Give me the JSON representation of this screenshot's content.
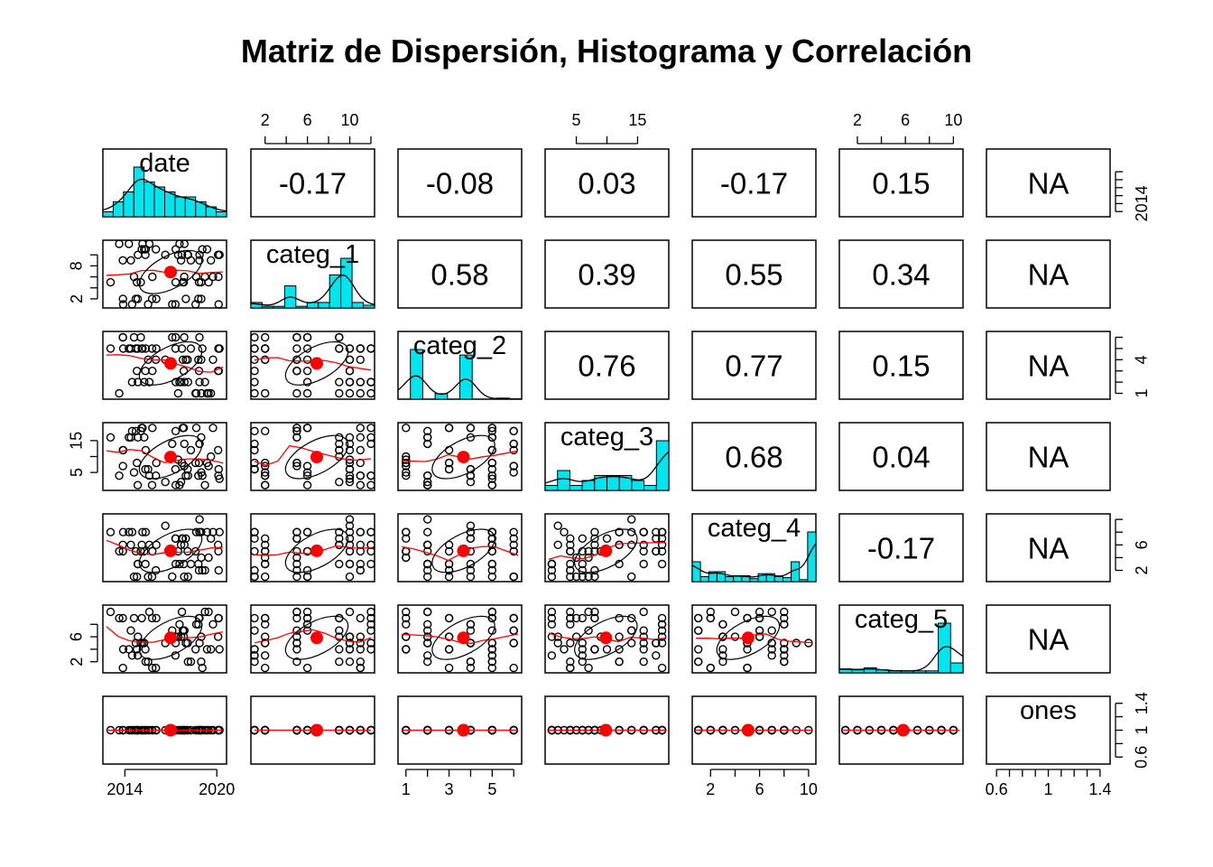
{
  "chart_data": {
    "type": "scatter",
    "title": "Matriz de Dispersión, Histograma y Correlación",
    "variables": [
      "date",
      "categ_1",
      "categ_2",
      "categ_3",
      "categ_4",
      "categ_5",
      "ones"
    ],
    "correlations": [
      {
        "row": 0,
        "col": 1,
        "label": "-0.17"
      },
      {
        "row": 0,
        "col": 2,
        "label": "-0.08"
      },
      {
        "row": 0,
        "col": 3,
        "label": "0.03"
      },
      {
        "row": 0,
        "col": 4,
        "label": "-0.17"
      },
      {
        "row": 0,
        "col": 5,
        "label": "0.15"
      },
      {
        "row": 0,
        "col": 6,
        "label": "NA"
      },
      {
        "row": 1,
        "col": 2,
        "label": "0.58"
      },
      {
        "row": 1,
        "col": 3,
        "label": "0.39"
      },
      {
        "row": 1,
        "col": 4,
        "label": "0.55"
      },
      {
        "row": 1,
        "col": 5,
        "label": "0.34"
      },
      {
        "row": 1,
        "col": 6,
        "label": "NA"
      },
      {
        "row": 2,
        "col": 3,
        "label": "0.76"
      },
      {
        "row": 2,
        "col": 4,
        "label": "0.77"
      },
      {
        "row": 2,
        "col": 5,
        "label": "0.15"
      },
      {
        "row": 2,
        "col": 6,
        "label": "NA"
      },
      {
        "row": 3,
        "col": 4,
        "label": "0.68"
      },
      {
        "row": 3,
        "col": 5,
        "label": "0.04"
      },
      {
        "row": 3,
        "col": 6,
        "label": "NA"
      },
      {
        "row": 4,
        "col": 5,
        "label": "-0.17"
      },
      {
        "row": 4,
        "col": 6,
        "label": "NA"
      },
      {
        "row": 5,
        "col": 6,
        "label": "NA"
      }
    ],
    "histograms": [
      {
        "var": "date",
        "range": [
          2013,
          2020.2
        ],
        "counts": [
          1,
          3,
          5,
          10,
          7,
          6,
          5,
          4,
          4,
          3,
          2,
          1
        ]
      },
      {
        "var": "categ_1",
        "range": [
          1,
          12
        ],
        "counts": [
          1,
          0.3,
          0.3,
          4,
          0.3,
          1,
          1,
          6,
          9,
          1,
          0.5
        ]
      },
      {
        "var": "categ_2",
        "range": [
          1,
          6.2
        ],
        "counts": [
          0,
          9,
          0,
          1,
          0,
          8,
          0,
          0,
          0.2,
          0
        ]
      },
      {
        "var": "categ_3",
        "range": [
          1,
          20
        ],
        "counts": [
          1,
          4,
          1,
          2,
          3,
          3,
          3,
          2,
          1,
          10
        ]
      },
      {
        "var": "categ_4",
        "range": [
          0.8,
          10.5
        ],
        "counts": [
          2,
          0.5,
          1,
          1,
          0.5,
          0.6,
          0.6,
          0.3,
          0.8,
          0.8,
          0.5,
          0.4,
          2,
          0.2,
          5
        ]
      },
      {
        "var": "categ_5",
        "range": [
          1,
          10.5
        ],
        "counts": [
          0.4,
          0.3,
          0.5,
          0.3,
          0.2,
          0.2,
          0.2,
          0.2,
          5,
          1
        ]
      },
      {
        "var": "ones",
        "range": [
          0.6,
          1.4
        ],
        "counts": []
      }
    ],
    "axes": [
      {
        "var": "date",
        "position": "bottom",
        "ticks": [
          2014,
          2020
        ],
        "lim": [
          2012.8,
          2020.4
        ]
      },
      {
        "var": "date",
        "position": "right",
        "ticks": [
          2014
        ],
        "minor": [
          2013,
          2014,
          2015,
          2016,
          2017,
          2018
        ],
        "lim": [
          2012.8,
          2020.4
        ]
      },
      {
        "var": "categ_1",
        "position": "top",
        "ticks": [
          2,
          6,
          10
        ],
        "minor": [
          2,
          4,
          6,
          8,
          10,
          12
        ],
        "lim": [
          1,
          12
        ]
      },
      {
        "var": "categ_1",
        "position": "left",
        "ticks": [
          2,
          8
        ],
        "minor": [
          2,
          4,
          6,
          8,
          10
        ],
        "lim": [
          1,
          12
        ]
      },
      {
        "var": "categ_2",
        "position": "bottom",
        "ticks": [
          1,
          3,
          5
        ],
        "minor": [
          1,
          2,
          3,
          4,
          5,
          6
        ],
        "lim": [
          0.8,
          6.2
        ]
      },
      {
        "var": "categ_2",
        "position": "right",
        "ticks": [
          1,
          4
        ],
        "minor": [
          1,
          2,
          3,
          4,
          5,
          6
        ],
        "lim": [
          0.8,
          6.2
        ]
      },
      {
        "var": "categ_3",
        "position": "top",
        "ticks": [
          5,
          15
        ],
        "minor": [
          5,
          10,
          15
        ],
        "lim": [
          0.5,
          19.5
        ]
      },
      {
        "var": "categ_3",
        "position": "left",
        "ticks": [
          5,
          15
        ],
        "minor": [
          5,
          10,
          15
        ],
        "lim": [
          0.5,
          19.5
        ]
      },
      {
        "var": "categ_4",
        "position": "bottom",
        "ticks": [
          2,
          6,
          10
        ],
        "minor": [
          2,
          4,
          6,
          8,
          10
        ],
        "lim": [
          0.8,
          10.3
        ]
      },
      {
        "var": "categ_4",
        "position": "right",
        "ticks": [
          2,
          6
        ],
        "minor": [
          2,
          4,
          6,
          8,
          10
        ],
        "lim": [
          0.8,
          10.3
        ]
      },
      {
        "var": "categ_5",
        "position": "top",
        "ticks": [
          2,
          6,
          10
        ],
        "minor": [
          2,
          4,
          6,
          8,
          10
        ],
        "lim": [
          0.8,
          10.5
        ]
      },
      {
        "var": "categ_5",
        "position": "left",
        "ticks": [
          2,
          6
        ],
        "minor": [
          2,
          4,
          6,
          8
        ],
        "lim": [
          0.8,
          10.5
        ]
      },
      {
        "var": "ones",
        "position": "bottom",
        "ticks": [
          0.6,
          1.0,
          1.4
        ],
        "minor": [
          0.6,
          0.7,
          0.8,
          0.9,
          1.0,
          1.1,
          1.2,
          1.3,
          1.4
        ],
        "lim": [
          0.55,
          1.45
        ]
      },
      {
        "var": "ones",
        "position": "right",
        "ticks": [
          0.6,
          1.0,
          1.4
        ],
        "minor": [
          0.6,
          0.8,
          1.0,
          1.2,
          1.4
        ],
        "lim": [
          0.55,
          1.45
        ]
      }
    ],
    "colors": {
      "histogram_fill": "#00e5ee",
      "smooth_line": "#ff0000",
      "mean_point": "#ff0000",
      "points": "#000000",
      "density_line": "#000000"
    }
  }
}
